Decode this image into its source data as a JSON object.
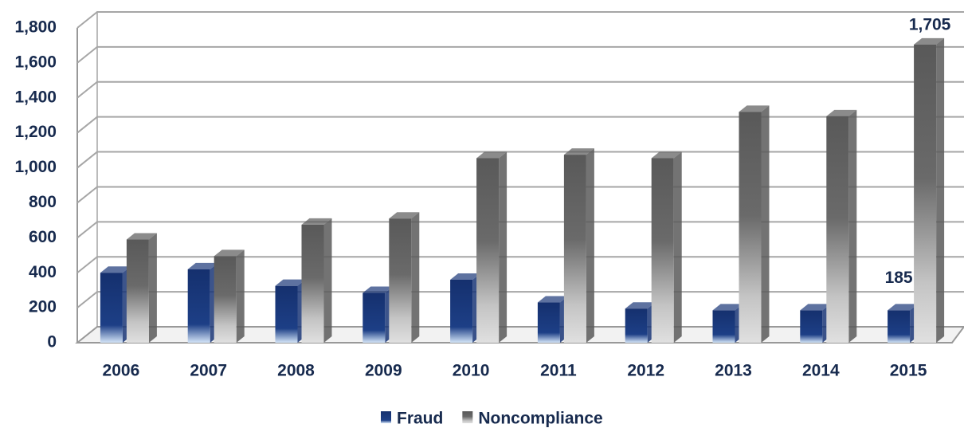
{
  "chart_data": {
    "type": "bar3d",
    "categories": [
      "2006",
      "2007",
      "2008",
      "2009",
      "2010",
      "2011",
      "2012",
      "2013",
      "2014",
      "2015"
    ],
    "series": [
      {
        "name": "Fraud",
        "color": "#1a3677",
        "values": [
          400,
          420,
          325,
          285,
          360,
          230,
          195,
          185,
          185,
          185
        ],
        "value_labels": [
          null,
          null,
          null,
          null,
          null,
          null,
          null,
          null,
          null,
          "185"
        ]
      },
      {
        "name": "Noncompliance",
        "color": "#5a5a5a",
        "values": [
          590,
          495,
          675,
          710,
          1055,
          1075,
          1055,
          1320,
          1295,
          1705
        ],
        "value_labels": [
          null,
          null,
          null,
          null,
          null,
          null,
          null,
          null,
          null,
          "1,705"
        ]
      }
    ],
    "ylim": [
      0,
      1800
    ],
    "yticks": [
      0,
      200,
      400,
      600,
      800,
      {
        "value": 1000,
        "label": "1,000"
      },
      {
        "value": 1200,
        "label": "1,200"
      },
      {
        "value": 1400,
        "label": "1,400"
      },
      {
        "value": 1600,
        "label": "1,600"
      },
      {
        "value": 1800,
        "label": "1,800"
      }
    ],
    "grid": true,
    "legend": "bottom"
  }
}
